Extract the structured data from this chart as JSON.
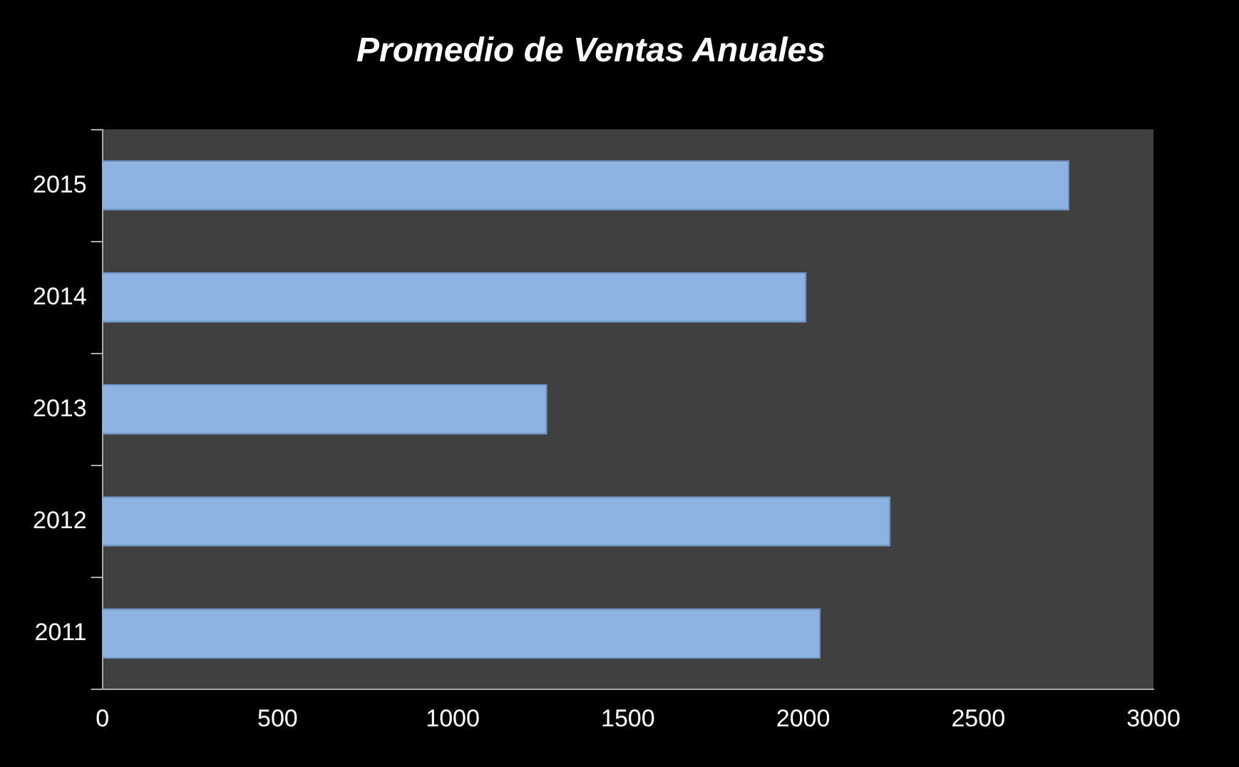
{
  "chart_data": {
    "type": "bar",
    "orientation": "horizontal",
    "title": "Promedio de Ventas Anuales",
    "categories": [
      "2015",
      "2014",
      "2013",
      "2012",
      "2011"
    ],
    "values": [
      2760,
      2010,
      1270,
      2250,
      2050
    ],
    "color": "#8db3e2",
    "xlim": [
      0,
      3000
    ],
    "xticks": [
      0,
      500,
      1000,
      1500,
      2000,
      2500,
      3000
    ],
    "grid": false,
    "legend": false
  }
}
